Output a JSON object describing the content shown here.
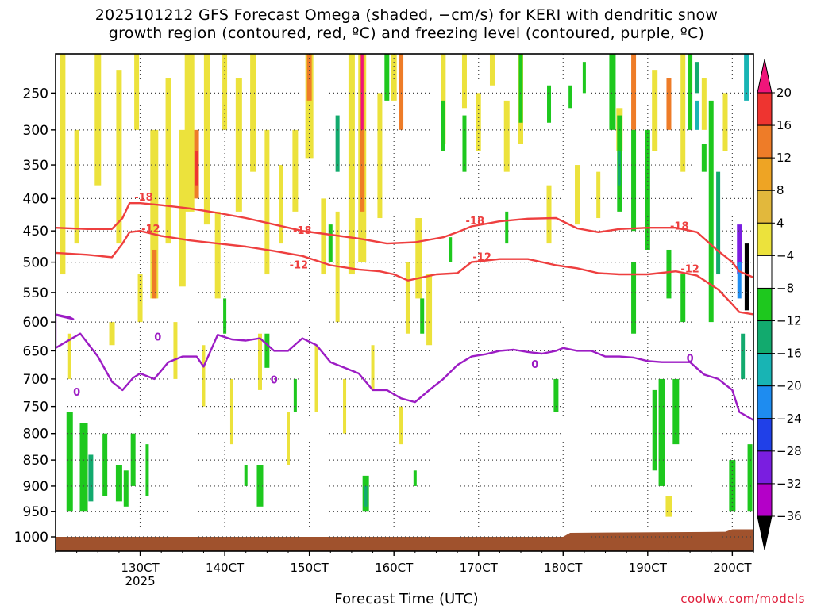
{
  "title": {
    "line1": "2025101212 GFS Forecast Omega (shaded, −cm/s) for KERI with dendritic snow",
    "line2": "growth region (contoured, red, ºC) and freezing level (contoured, purple, ºC)"
  },
  "credit": "coolwx.com/models",
  "chart_data": {
    "type": "heatmap",
    "xlabel": "Forecast Time (UTC)",
    "ylabel": "",
    "x_ticks": [
      "130CT",
      "140CT",
      "150CT",
      "160CT",
      "170CT",
      "180CT",
      "190CT",
      "200CT"
    ],
    "x_year_label": "2025",
    "xlim_hours": [
      -24,
      174
    ],
    "y_ticks": [
      250,
      300,
      350,
      400,
      450,
      500,
      550,
      600,
      650,
      700,
      750,
      800,
      850,
      900,
      950,
      1000
    ],
    "ylim_hPa": [
      200,
      1020
    ],
    "grid": true,
    "colorbar": {
      "labels": [
        "20",
        "16",
        "12",
        "8",
        "4",
        "−4",
        "−8",
        "−12",
        "−16",
        "−20",
        "−24",
        "−28",
        "−32",
        "−36"
      ],
      "colors": [
        "#f0157a",
        "#ee3430",
        "#ee7c28",
        "#eea424",
        "#e2b83c",
        "#ece23c",
        "#ffffff",
        "#1ec81e",
        "#12aa6e",
        "#18b4b4",
        "#1e8cf0",
        "#2040e8",
        "#7a1ee0",
        "#b400c8",
        "#a0a0a0",
        "#000000"
      ]
    },
    "series": [
      {
        "name": "-18",
        "color": "#ee3f3f",
        "x": [
          -24,
          -15,
          -8,
          -5,
          -3,
          0,
          6,
          14,
          22,
          30,
          38,
          46,
          54,
          62,
          70,
          78,
          86,
          90,
          94,
          102,
          110,
          118,
          124,
          130,
          136,
          144,
          152,
          158,
          164,
          168,
          170,
          174
        ],
        "y": [
          445,
          447,
          447,
          430,
          407,
          407,
          410,
          415,
          422,
          430,
          440,
          450,
          456,
          462,
          470,
          468,
          460,
          452,
          443,
          435,
          431,
          430,
          446,
          452,
          447,
          445,
          445,
          452,
          482,
          500,
          515,
          525
        ],
        "labels": [
          {
            "x": 1,
            "y": 403,
            "text": "-18"
          },
          {
            "x": 46,
            "y": 455,
            "text": "-18"
          },
          {
            "x": 95,
            "y": 440,
            "text": "-18"
          },
          {
            "x": 153,
            "y": 448,
            "text": "-18"
          }
        ]
      },
      {
        "name": "-12",
        "color": "#ee3f3f",
        "x": [
          -24,
          -15,
          -8,
          -5,
          -3,
          0,
          6,
          14,
          22,
          30,
          38,
          46,
          54,
          62,
          68,
          72,
          76,
          84,
          90,
          94,
          102,
          110,
          118,
          124,
          130,
          136,
          144,
          152,
          158,
          164,
          168,
          170,
          174
        ],
        "y": [
          485,
          488,
          492,
          470,
          452,
          450,
          458,
          465,
          470,
          475,
          482,
          490,
          505,
          512,
          515,
          520,
          530,
          520,
          518,
          500,
          495,
          495,
          505,
          510,
          518,
          520,
          520,
          515,
          522,
          545,
          570,
          583,
          587
        ],
        "labels": [
          {
            "x": 3,
            "y": 452,
            "text": "-12"
          },
          {
            "x": 45,
            "y": 510,
            "text": "-12"
          },
          {
            "x": 97,
            "y": 497,
            "text": "-12"
          },
          {
            "x": 156,
            "y": 517,
            "text": "-12"
          }
        ]
      },
      {
        "name": "0",
        "color": "#9c1cc4",
        "x": [
          -24,
          -20,
          -19,
          -24,
          -24,
          -17,
          -12,
          -8,
          -5,
          -2,
          0,
          4,
          8,
          12,
          16,
          18,
          22,
          26,
          30,
          34,
          38,
          42,
          46,
          50,
          54,
          58,
          62,
          66,
          70,
          74,
          78,
          82,
          86,
          90,
          94,
          98,
          102,
          106,
          110,
          114,
          118,
          120,
          124,
          128,
          132,
          136,
          140,
          144,
          148,
          152,
          156,
          160,
          164,
          168,
          170,
          174
        ],
        "y": [
          587,
          592,
          595,
          588,
          645,
          620,
          660,
          705,
          720,
          698,
          690,
          700,
          670,
          660,
          660,
          678,
          622,
          630,
          632,
          628,
          650,
          650,
          628,
          640,
          670,
          680,
          690,
          720,
          720,
          735,
          742,
          720,
          700,
          675,
          660,
          656,
          650,
          648,
          652,
          655,
          650,
          645,
          650,
          650,
          660,
          660,
          662,
          668,
          670,
          670,
          670,
          692,
          700,
          720,
          760,
          775
        ],
        "labels": [
          {
            "x": -18,
            "y": 730,
            "text": "0"
          },
          {
            "x": 5,
            "y": 632,
            "text": "0"
          },
          {
            "x": 38,
            "y": 708,
            "text": "0"
          },
          {
            "x": 112,
            "y": 680,
            "text": "0"
          },
          {
            "x": 156,
            "y": 670,
            "text": "0"
          }
        ]
      }
    ]
  }
}
